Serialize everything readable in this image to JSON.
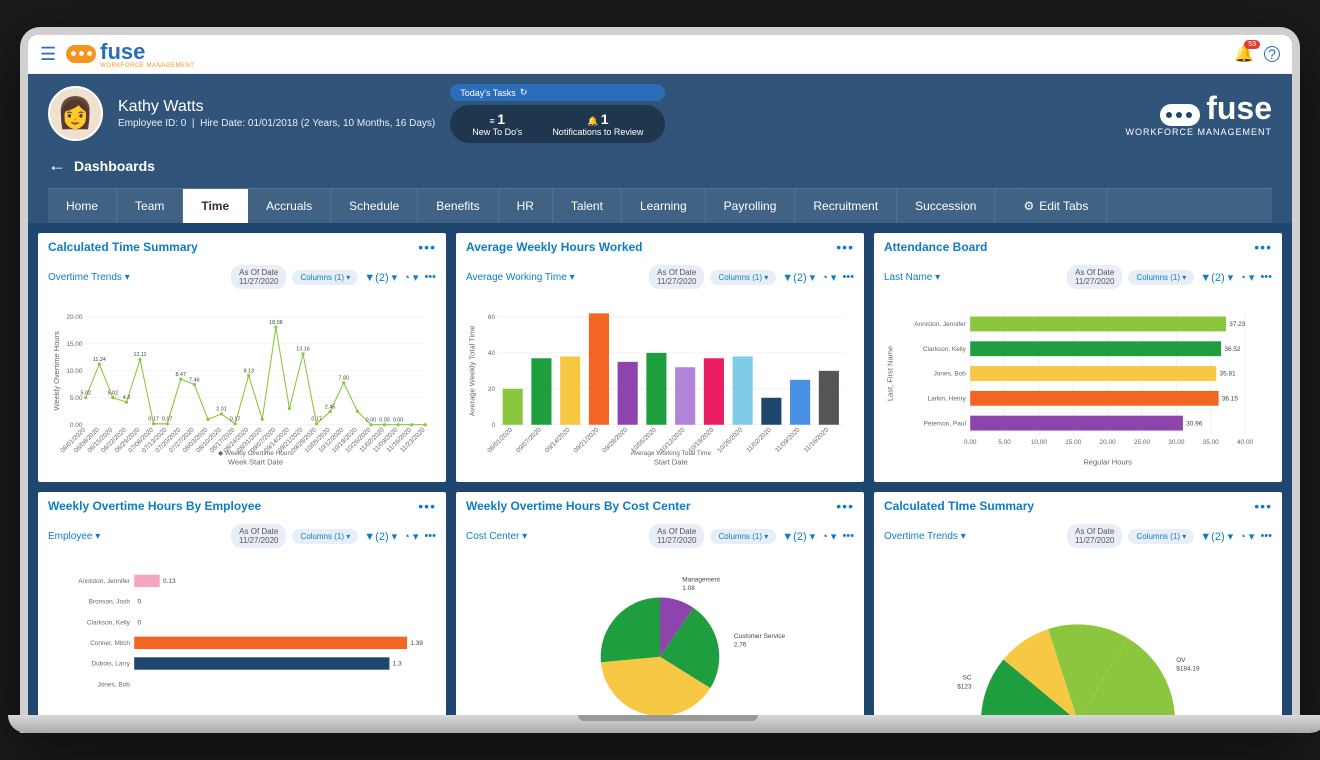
{
  "brand": {
    "name": "fuse",
    "tagline": "WORKFORCE MANAGEMENT"
  },
  "notifications": {
    "badge": "53"
  },
  "user": {
    "name": "Kathy Watts",
    "employee_id": "Employee ID: 0",
    "hire_date": "Hire Date: 01/01/2018 (2 Years, 10 Months, 16 Days)"
  },
  "tasks": {
    "label": "Today's Tasks",
    "stats": [
      {
        "count": "1",
        "label": "New To Do's",
        "icon": "≡"
      },
      {
        "count": "1",
        "label": "Notifications to Review",
        "icon": "🔔"
      }
    ]
  },
  "breadcrumb": "Dashboards",
  "tabs": [
    "Home",
    "Team",
    "Time",
    "Accruals",
    "Schedule",
    "Benefits",
    "HR",
    "Talent",
    "Learning",
    "Payrolling",
    "Recruitment",
    "Succession"
  ],
  "active_tab": "Time",
  "edit_tabs": "Edit Tabs",
  "controls": {
    "as_of_label": "As Of Date",
    "as_of_date": "11/27/2020",
    "columns": "Columns (1)",
    "filter": "(2)"
  },
  "cards": [
    {
      "title": "Calculated Time Summary",
      "dropdown": "Overtime Trends",
      "chart": {
        "type": "line",
        "ylabel": "Weekly Overtime Hours",
        "xlabel": "Week Start Date",
        "legend": "Weekly Overtime Hours",
        "ylim": [
          0,
          20
        ],
        "ytick": 5,
        "color": "#8cc63f",
        "x": [
          "06/01/2020",
          "06/08/2020",
          "06/15/2020",
          "06/22/2020",
          "06/29/2020",
          "07/06/2020",
          "07/13/2020",
          "07/20/2020",
          "07/27/2020",
          "08/03/2020",
          "08/10/2020",
          "08/17/2020",
          "08/24/2020",
          "08/31/2020",
          "09/07/2020",
          "09/14/2020",
          "09/21/2020",
          "09/28/2020",
          "10/05/2020",
          "10/12/2020",
          "10/19/2020",
          "10/26/2020",
          "11/02/2020",
          "11/09/2020",
          "11/16/2020",
          "11/23/2020"
        ],
        "y": [
          5.02,
          11.24,
          5.02,
          4.2,
          12.11,
          0.17,
          0.17,
          8.47,
          7.46,
          1.0,
          2.01,
          0.17,
          9.13,
          1.0,
          18.08,
          3.0,
          13.16,
          0.17,
          2.45,
          7.8,
          2.5,
          0.0,
          0.0,
          0.0,
          0.0,
          0.0
        ],
        "labels": [
          "5.02",
          "11.24",
          "5.02",
          "4.2",
          "12.11",
          "0.17",
          "0.17",
          "8.47",
          "7.46",
          "",
          "2.01",
          "0.17",
          "9.13",
          "",
          "18.08",
          "",
          "13.16",
          "0.17",
          "2.45",
          "7.80",
          "",
          "0.00",
          "0.00",
          "0.00",
          "",
          ""
        ]
      }
    },
    {
      "title": "Average Weekly Hours Worked",
      "dropdown": "Average Working Time",
      "chart": {
        "type": "bar",
        "ylabel": "Average Weekly Total Time",
        "xlabel": "Start Date",
        "legend": "Average Working Total Time",
        "ylim": [
          0,
          60
        ],
        "ytick": 20,
        "x": [
          "06/01/2020",
          "09/07/2020",
          "09/14/2020",
          "09/21/2020",
          "09/28/2020",
          "10/05/2020",
          "10/12/2020",
          "10/19/2020",
          "10/26/2020",
          "11/02/2020",
          "11/09/2020",
          "11/16/2020"
        ],
        "y": [
          20,
          37,
          38,
          62,
          35,
          40,
          32,
          37,
          38,
          15,
          25,
          30
        ],
        "colors": [
          "#8cc63f",
          "#1e9e3e",
          "#f7c844",
          "#f26522",
          "#8e44ad",
          "#1e9e3e",
          "#b084d6",
          "#e91e63",
          "#7ecce8",
          "#1e466e",
          "#4a90e2",
          "#555"
        ]
      }
    },
    {
      "title": "Attendance Board",
      "dropdown": "Last Name",
      "chart": {
        "type": "hbar",
        "xlabel": "Regular Hours",
        "ylabel": "Last, First Name",
        "xlim": [
          0,
          40
        ],
        "xtick": 5,
        "names": [
          "Anniston, Jennifer",
          "Clarkson, Kelly",
          "Jones, Bob",
          "Larkin, Henry",
          "Peterson, Paul"
        ],
        "values": [
          37.23,
          36.52,
          35.81,
          36.15,
          30.96
        ],
        "colors": [
          "#8cc63f",
          "#1e9e3e",
          "#f7c844",
          "#f26522",
          "#8e44ad"
        ]
      }
    },
    {
      "title": "Weekly Overtime Hours By Employee",
      "dropdown": "Employee",
      "chart": {
        "type": "hbar",
        "xlim": [
          0,
          1.4
        ],
        "names": [
          "Anniston, Jennifer",
          "Bronson, Josh",
          "Clarkson, Kelly",
          "Conner, Mitch",
          "Dubois, Larry",
          "Jones, Bob"
        ],
        "values": [
          0.13,
          0,
          0,
          1.39,
          1.3,
          0
        ],
        "colors": [
          "#f4a6c0",
          "#999",
          "#999",
          "#f26522",
          "#1e466e",
          "#999"
        ],
        "show_labels": [
          true,
          true,
          true,
          true,
          true,
          false
        ]
      }
    },
    {
      "title": "Weekly Overtime Hours By Cost Center",
      "dropdown": "Cost Center",
      "chart": {
        "type": "pie",
        "slices": [
          {
            "label": "Management",
            "value": 1.08,
            "color": "#8e44ad"
          },
          {
            "label": "Customer Service",
            "value": 2.76,
            "color": "#1e9e3e"
          },
          {
            "label": "",
            "value": 4.5,
            "color": "#f7c844"
          },
          {
            "label": "",
            "value": 3.0,
            "color": "#1e9e3e"
          }
        ]
      }
    },
    {
      "title": "Calculated TIme Summary",
      "dropdown": "Overtime Trends",
      "chart": {
        "type": "pie_half",
        "slices": [
          {
            "label": "SC",
            "value": 123,
            "display": "$123",
            "color": "#1e9e3e"
          },
          {
            "label": "",
            "value": 100,
            "color": "#f7c844"
          },
          {
            "label": "",
            "value": 150,
            "color": "#8cc63f"
          },
          {
            "label": "OV",
            "value": 184.19,
            "display": "$184.19",
            "color": "#8cc63f"
          }
        ]
      }
    }
  ]
}
